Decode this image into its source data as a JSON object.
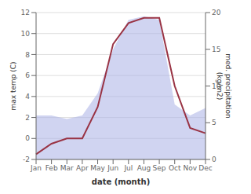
{
  "chart_data": {
    "type": "line",
    "categories": [
      "Jan",
      "Feb",
      "Mar",
      "Apr",
      "May",
      "Jun",
      "Jul",
      "Aug",
      "Sep",
      "Oct",
      "Nov",
      "Dec"
    ],
    "xlabel": "date (month)",
    "ylabel": "max temp (C)",
    "y2label": "med. precipitation\n(kg/m2)",
    "series": [
      {
        "type": "area",
        "axis": "y2",
        "color": "#b0b8e8",
        "values": [
          6.0,
          6.0,
          5.5,
          6.0,
          9.0,
          15.0,
          19.0,
          19.5,
          19.0,
          7.5,
          6.0,
          7.0
        ]
      },
      {
        "type": "line",
        "color": "#993344",
        "values": [
          -1.5,
          -0.5,
          0.0,
          0.0,
          3.0,
          9.0,
          11.0,
          11.5,
          11.5,
          5.0,
          1.0,
          0.5
        ]
      }
    ],
    "ylim": [
      -2,
      12
    ],
    "yticks": [
      -2,
      0,
      2,
      4,
      6,
      8,
      10,
      12
    ],
    "y2lim": [
      0,
      20
    ],
    "y2ticks": [
      0,
      5,
      10,
      15,
      20
    ],
    "grid": true
  }
}
